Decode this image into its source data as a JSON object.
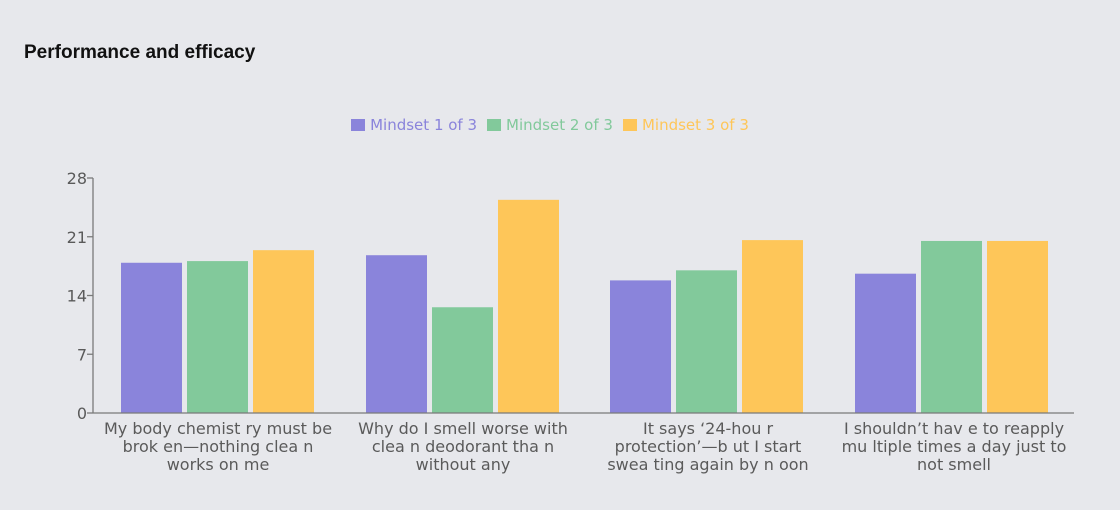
{
  "title": "Performance and efficacy",
  "chart_data": {
    "type": "bar",
    "categories": [
      "My body chemist ry must be brok en—nothing clea n works on me",
      "Why do I smell worse with clea n deodorant tha n without any",
      "It says ‘24-hou r protection’—b ut I start swea ting again by n oon",
      "I shouldn’t hav e to reapply mu ltiple times a day just to not smell"
    ],
    "series": [
      {
        "name": "Mindset 1 of 3",
        "color": "#8a84db",
        "values": [
          17.9,
          18.8,
          15.8,
          16.6
        ]
      },
      {
        "name": "Mindset 2 of 3",
        "color": "#82c99b",
        "values": [
          18.1,
          12.6,
          17.0,
          20.5
        ]
      },
      {
        "name": "Mindset 3 of 3",
        "color": "#fec659",
        "values": [
          19.4,
          25.4,
          20.6,
          20.5
        ]
      }
    ],
    "yticks": [
      "0",
      "7",
      "14",
      "21",
      "28"
    ],
    "ylim": [
      0,
      28
    ],
    "grid": false,
    "legend_position": "top-center"
  }
}
